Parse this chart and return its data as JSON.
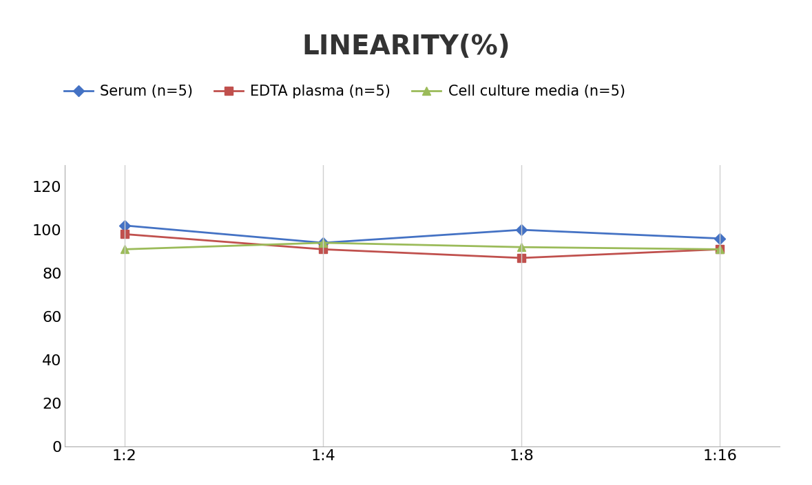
{
  "title": "LINEARITY(%)",
  "x_labels": [
    "1:2",
    "1:4",
    "1:8",
    "1:16"
  ],
  "x_positions": [
    0,
    1,
    2,
    3
  ],
  "series": [
    {
      "name": "Serum (n=5)",
      "values": [
        102,
        94,
        100,
        96
      ],
      "color": "#4472C4",
      "marker": "D",
      "markersize": 8,
      "linewidth": 2.0
    },
    {
      "name": "EDTA plasma (n=5)",
      "values": [
        98,
        91,
        87,
        91
      ],
      "color": "#C0504D",
      "marker": "s",
      "markersize": 8,
      "linewidth": 2.0
    },
    {
      "name": "Cell culture media (n=5)",
      "values": [
        91,
        94,
        92,
        91
      ],
      "color": "#9BBB59",
      "marker": "^",
      "markersize": 8,
      "linewidth": 2.0
    }
  ],
  "ylim": [
    0,
    130
  ],
  "yticks": [
    0,
    20,
    40,
    60,
    80,
    100,
    120
  ],
  "background_color": "#ffffff",
  "grid_color": "#d0d0d0",
  "title_fontsize": 28,
  "tick_fontsize": 16,
  "legend_fontsize": 15
}
